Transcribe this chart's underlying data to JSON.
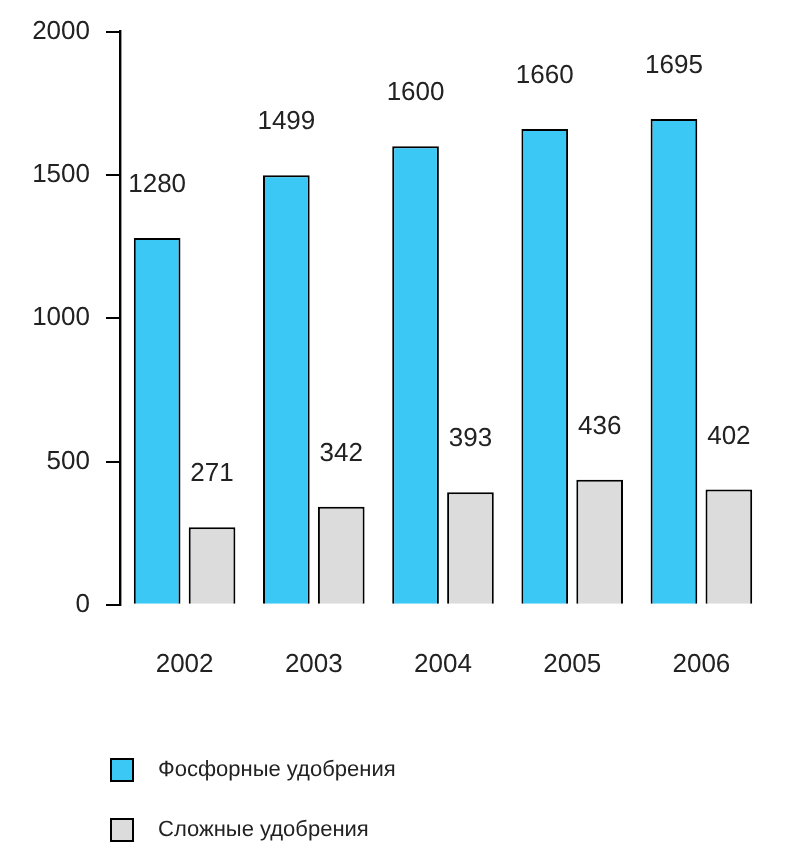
{
  "chart_data": {
    "type": "bar",
    "categories": [
      "2002",
      "2003",
      "2004",
      "2005",
      "2006"
    ],
    "series": [
      {
        "name": "Фосфорные удобрения",
        "color": "#3cc8f4",
        "values": [
          1280,
          1499,
          1600,
          1660,
          1695
        ]
      },
      {
        "name": "Сложные удобрения",
        "color": "#dcdcdc",
        "values": [
          271,
          342,
          393,
          436,
          402
        ]
      }
    ],
    "ylim": [
      0,
      2000
    ],
    "yticks": [
      0,
      500,
      1000,
      1500,
      2000
    ],
    "grid": false,
    "legend": "bottom",
    "data_labels": true
  }
}
